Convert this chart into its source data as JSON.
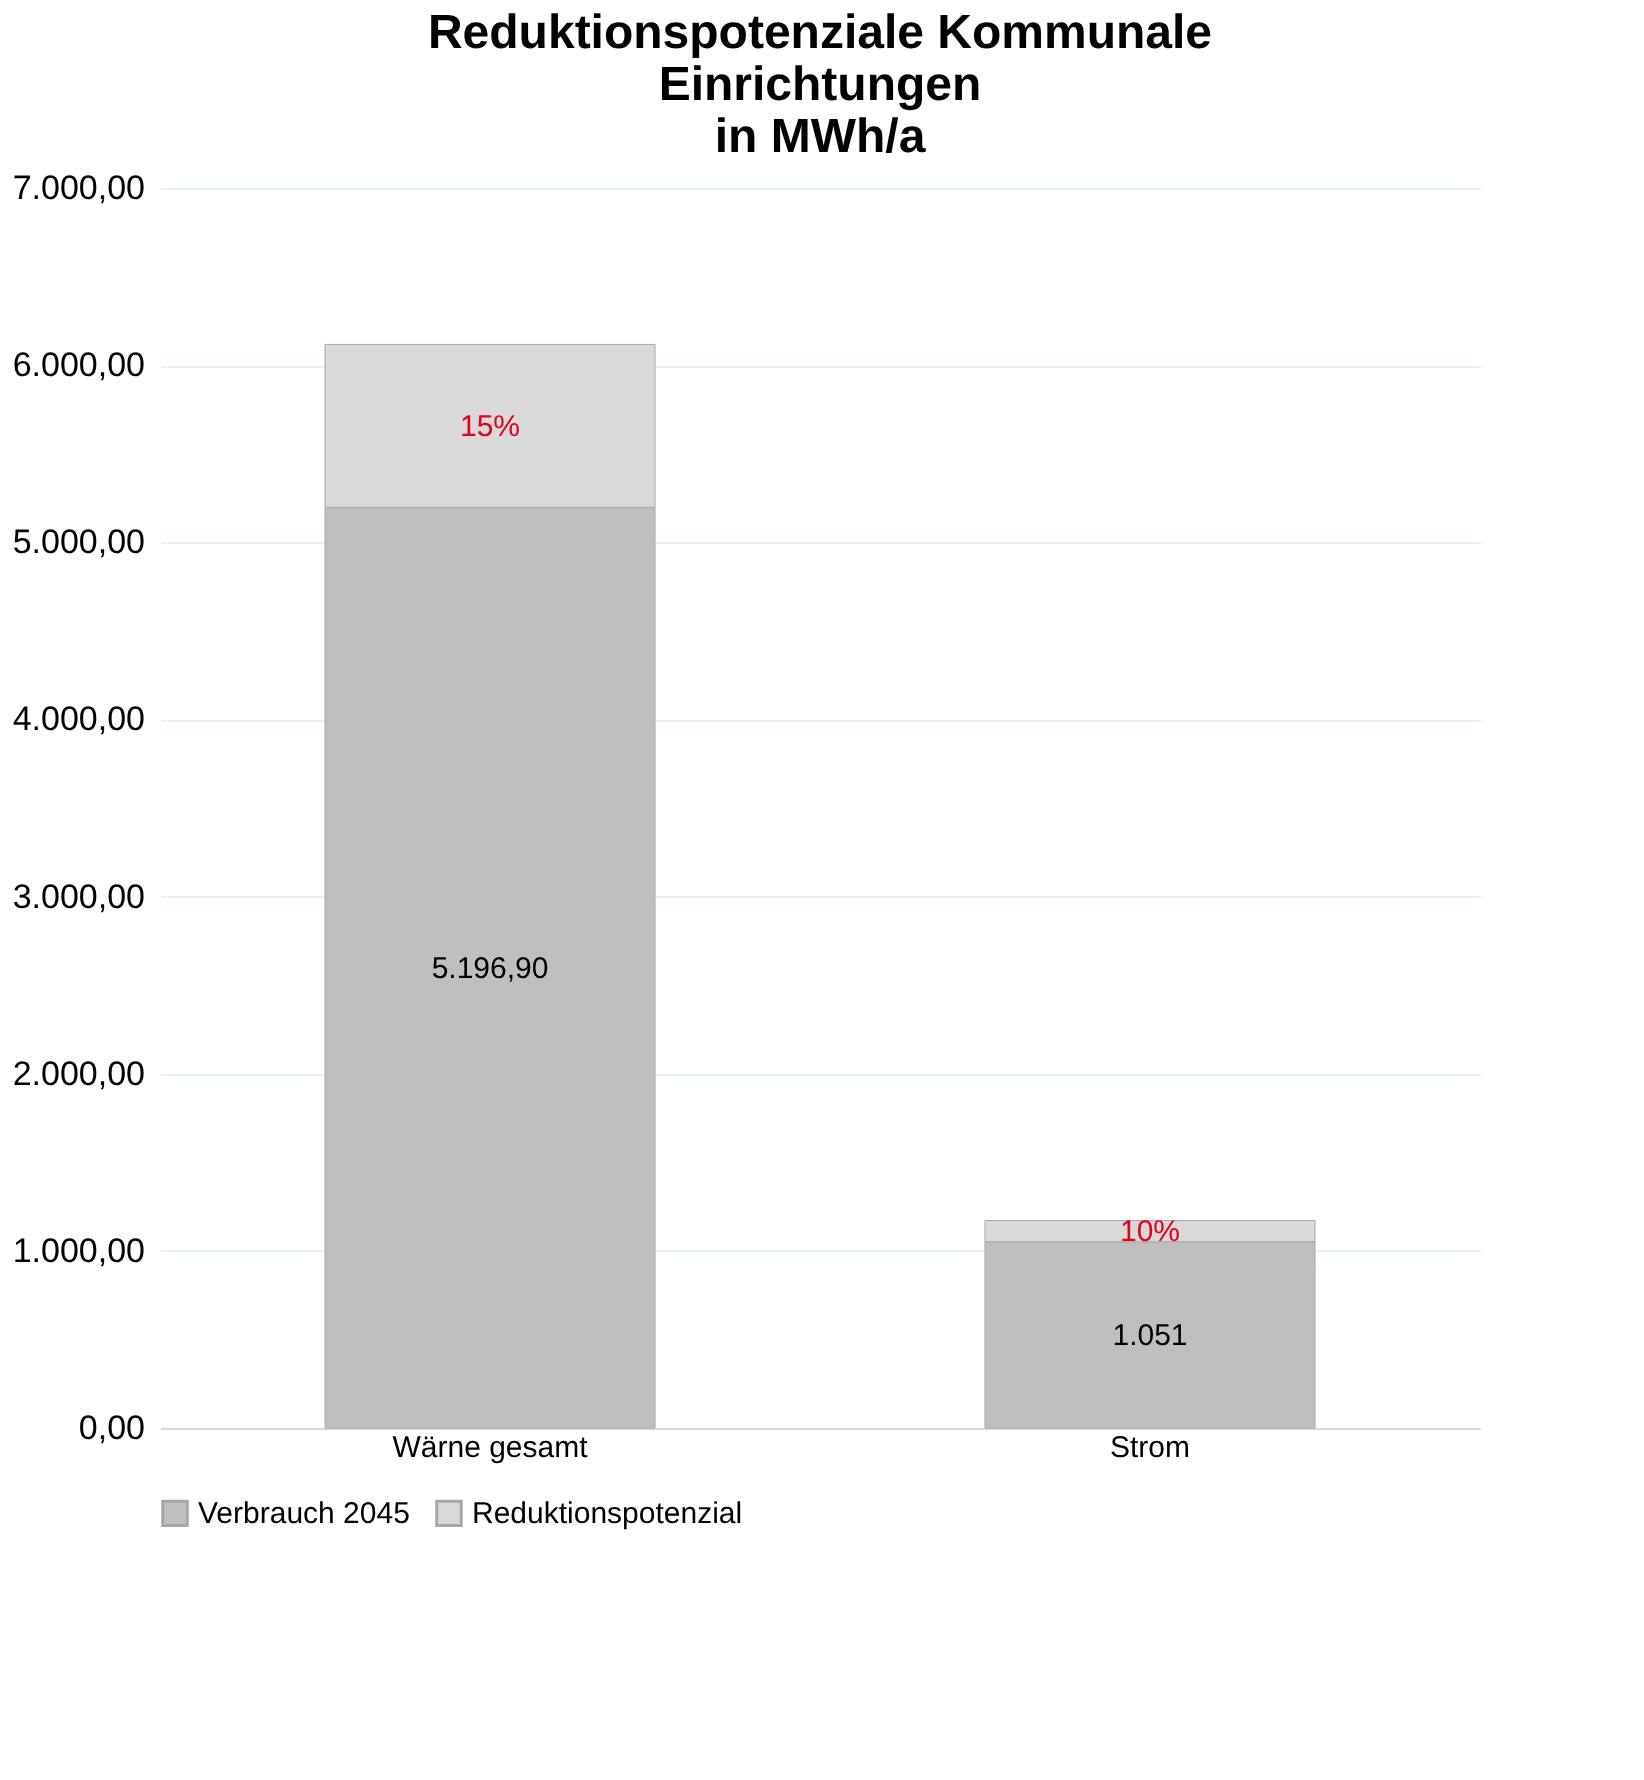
{
  "chart_data": {
    "type": "bar",
    "title": [
      "Reduktionspotenziale Kommunale",
      "Einrichtungen",
      "in MWh/a"
    ],
    "categories": [
      "Wärne gesamt",
      "Strom"
    ],
    "stacked": true,
    "series": [
      {
        "name": "Verbrauch 2045",
        "color": "#bfbfbf",
        "values": [
          5196.9,
          1051
        ],
        "value_labels": [
          "5.196,90",
          "1.051"
        ]
      },
      {
        "name": "Reduktionspotenzial",
        "color": "#d9d9d9",
        "values": [
          920,
          120
        ]
      }
    ],
    "annotations": [
      "15%",
      "10%"
    ],
    "ylim": [
      0,
      7000
    ],
    "yticks": [
      {
        "value": 0,
        "label": "0,00"
      },
      {
        "value": 1000,
        "label": "1.000,00"
      },
      {
        "value": 2000,
        "label": "2.000,00"
      },
      {
        "value": 3000,
        "label": "3.000,00"
      },
      {
        "value": 4000,
        "label": "4.000,00"
      },
      {
        "value": 5000,
        "label": "5.000,00"
      },
      {
        "value": 6000,
        "label": "6.000,00"
      },
      {
        "value": 7000,
        "label": "7.000,00"
      }
    ],
    "grid": "y",
    "legend": "bottom"
  }
}
